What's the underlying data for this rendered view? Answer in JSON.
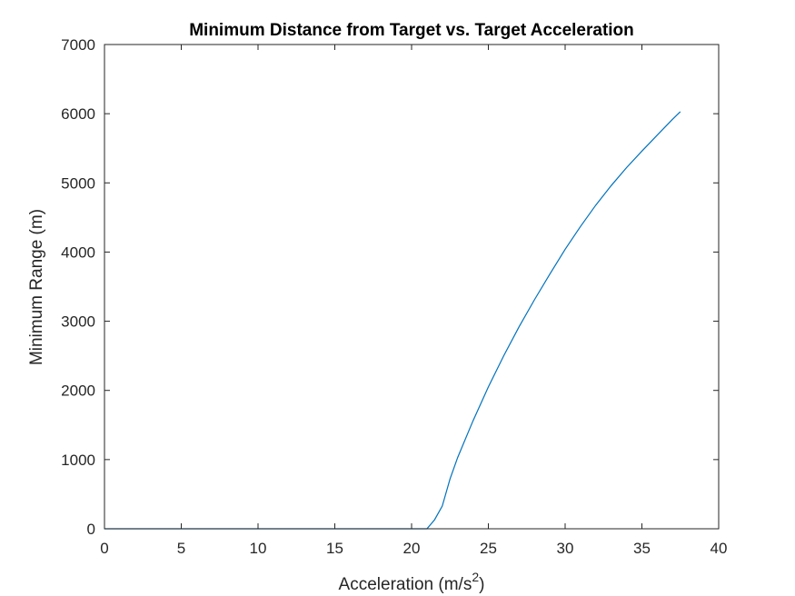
{
  "chart_data": {
    "type": "line",
    "title": "Minimum Distance from Target vs. Target Acceleration",
    "xlabel": "Acceleration (m/s",
    "xlabel_superscript": "2",
    "xlabel_suffix": ")",
    "ylabel": "Minimum Range (m)",
    "xlim": [
      0,
      40
    ],
    "ylim": [
      0,
      7000
    ],
    "xticks": [
      0,
      5,
      10,
      15,
      20,
      25,
      30,
      35,
      40
    ],
    "yticks": [
      0,
      1000,
      2000,
      3000,
      4000,
      5000,
      6000,
      7000
    ],
    "grid": false,
    "legend": "none",
    "series": [
      {
        "color": "#0072BD",
        "x": [
          0,
          5,
          10,
          15,
          20,
          21,
          21.5,
          22,
          22.5,
          23,
          24,
          25,
          26,
          27,
          28,
          29,
          30,
          31,
          32,
          33,
          34,
          35,
          36,
          37,
          37.5
        ],
        "y": [
          0,
          0,
          0,
          0,
          0,
          0,
          130,
          330,
          720,
          1030,
          1560,
          2050,
          2500,
          2920,
          3310,
          3680,
          4040,
          4370,
          4680,
          4960,
          5220,
          5460,
          5690,
          5920,
          6030
        ]
      }
    ]
  }
}
